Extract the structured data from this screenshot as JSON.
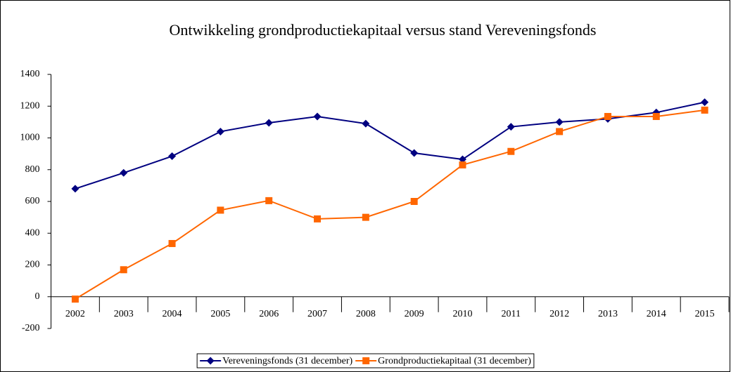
{
  "chart_data": {
    "type": "line",
    "title": "Ontwikkeling grondproductiekapitaal versus stand Vereveningsfonds",
    "categories": [
      "2002",
      "2003",
      "2004",
      "2005",
      "2006",
      "2007",
      "2008",
      "2009",
      "2010",
      "2011",
      "2012",
      "2013",
      "2014",
      "2015"
    ],
    "series": [
      {
        "name": "Vereveningsfonds (31 december)",
        "color": "#000080",
        "marker": "diamond",
        "values": [
          680,
          780,
          885,
          1040,
          1095,
          1135,
          1090,
          905,
          865,
          1070,
          1100,
          1120,
          1160,
          1225
        ]
      },
      {
        "name": "Grondproductiekapitaal (31 december)",
        "color": "#ff6600",
        "marker": "square",
        "values": [
          -15,
          170,
          335,
          545,
          605,
          490,
          500,
          600,
          830,
          915,
          1040,
          1135,
          1135,
          1175
        ]
      }
    ],
    "ylim": [
      -200,
      1400
    ],
    "yticks": [
      -200,
      0,
      200,
      400,
      600,
      800,
      1000,
      1200,
      1400
    ],
    "grid": false,
    "legend": "bottom"
  }
}
